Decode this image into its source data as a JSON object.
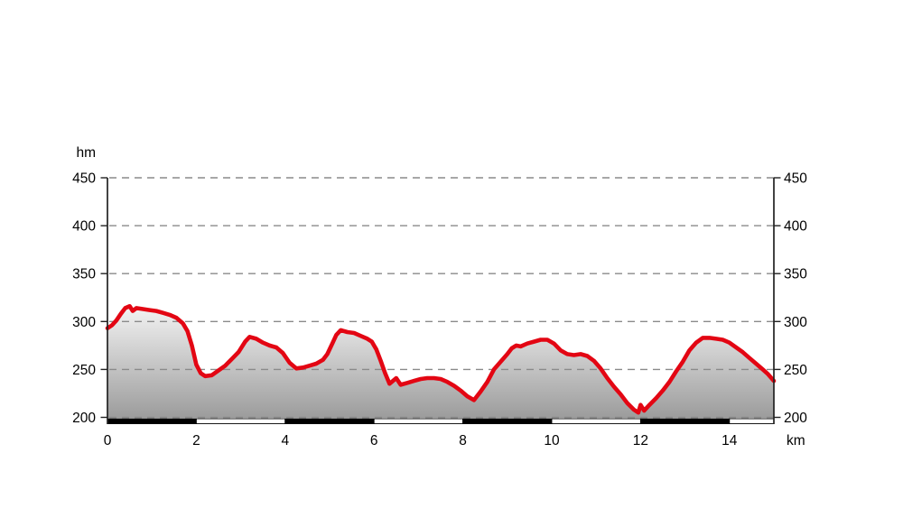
{
  "chart_data": {
    "type": "area",
    "title": "",
    "x_unit_label": "km",
    "y_unit_label": "hm",
    "x_ticks": [
      0,
      2,
      4,
      6,
      8,
      10,
      12,
      14
    ],
    "y_ticks": [
      200,
      250,
      300,
      350,
      400,
      450
    ],
    "xlim": [
      0,
      15
    ],
    "ylim": [
      200,
      450
    ],
    "grid": "horizontal-dashed",
    "legend": "none",
    "series_name": "elevation-profile",
    "profile": [
      [
        0.0,
        293
      ],
      [
        0.1,
        296
      ],
      [
        0.2,
        301
      ],
      [
        0.3,
        308
      ],
      [
        0.4,
        314
      ],
      [
        0.5,
        316
      ],
      [
        0.57,
        311
      ],
      [
        0.65,
        314
      ],
      [
        0.8,
        313
      ],
      [
        0.95,
        312
      ],
      [
        1.1,
        311
      ],
      [
        1.25,
        309
      ],
      [
        1.4,
        307
      ],
      [
        1.55,
        304
      ],
      [
        1.7,
        298
      ],
      [
        1.8,
        290
      ],
      [
        1.9,
        275
      ],
      [
        2.0,
        255
      ],
      [
        2.1,
        246
      ],
      [
        2.2,
        243
      ],
      [
        2.35,
        244
      ],
      [
        2.5,
        249
      ],
      [
        2.65,
        254
      ],
      [
        2.8,
        261
      ],
      [
        2.95,
        268
      ],
      [
        3.1,
        279
      ],
      [
        3.2,
        284
      ],
      [
        3.35,
        282
      ],
      [
        3.5,
        278
      ],
      [
        3.65,
        275
      ],
      [
        3.8,
        273
      ],
      [
        3.95,
        267
      ],
      [
        4.1,
        257
      ],
      [
        4.25,
        251
      ],
      [
        4.4,
        252
      ],
      [
        4.55,
        254
      ],
      [
        4.7,
        256
      ],
      [
        4.85,
        260
      ],
      [
        4.95,
        266
      ],
      [
        5.05,
        276
      ],
      [
        5.15,
        286
      ],
      [
        5.25,
        291
      ],
      [
        5.4,
        289
      ],
      [
        5.55,
        288
      ],
      [
        5.7,
        285
      ],
      [
        5.85,
        282
      ],
      [
        5.95,
        279
      ],
      [
        6.05,
        271
      ],
      [
        6.15,
        259
      ],
      [
        6.25,
        246
      ],
      [
        6.35,
        235
      ],
      [
        6.5,
        241
      ],
      [
        6.6,
        234
      ],
      [
        6.75,
        236
      ],
      [
        6.9,
        238
      ],
      [
        7.05,
        240
      ],
      [
        7.2,
        241
      ],
      [
        7.35,
        241
      ],
      [
        7.5,
        240
      ],
      [
        7.65,
        237
      ],
      [
        7.8,
        233
      ],
      [
        7.95,
        228
      ],
      [
        8.1,
        222
      ],
      [
        8.25,
        218
      ],
      [
        8.4,
        227
      ],
      [
        8.55,
        237
      ],
      [
        8.7,
        250
      ],
      [
        8.85,
        258
      ],
      [
        9.0,
        266
      ],
      [
        9.1,
        272
      ],
      [
        9.2,
        275
      ],
      [
        9.3,
        274
      ],
      [
        9.45,
        277
      ],
      [
        9.6,
        279
      ],
      [
        9.75,
        281
      ],
      [
        9.9,
        281
      ],
      [
        10.05,
        277
      ],
      [
        10.2,
        270
      ],
      [
        10.35,
        266
      ],
      [
        10.5,
        265
      ],
      [
        10.65,
        266
      ],
      [
        10.8,
        264
      ],
      [
        10.95,
        259
      ],
      [
        11.1,
        251
      ],
      [
        11.25,
        241
      ],
      [
        11.4,
        232
      ],
      [
        11.55,
        224
      ],
      [
        11.7,
        215
      ],
      [
        11.85,
        208
      ],
      [
        11.95,
        205
      ],
      [
        12.0,
        213
      ],
      [
        12.08,
        207
      ],
      [
        12.2,
        213
      ],
      [
        12.35,
        220
      ],
      [
        12.5,
        228
      ],
      [
        12.65,
        237
      ],
      [
        12.8,
        248
      ],
      [
        12.95,
        258
      ],
      [
        13.1,
        270
      ],
      [
        13.25,
        278
      ],
      [
        13.4,
        283
      ],
      [
        13.55,
        283
      ],
      [
        13.7,
        282
      ],
      [
        13.85,
        281
      ],
      [
        14.0,
        278
      ],
      [
        14.15,
        273
      ],
      [
        14.3,
        268
      ],
      [
        14.45,
        262
      ],
      [
        14.6,
        256
      ],
      [
        14.75,
        250
      ],
      [
        14.87,
        245
      ],
      [
        15.0,
        238
      ]
    ],
    "surface_bar": {
      "description": "alternating distance bands every 2 km along baseline",
      "segments": [
        {
          "from": 0,
          "to": 2,
          "fill": "black"
        },
        {
          "from": 2,
          "to": 4,
          "fill": "white"
        },
        {
          "from": 4,
          "to": 6,
          "fill": "black"
        },
        {
          "from": 6,
          "to": 8,
          "fill": "white"
        },
        {
          "from": 8,
          "to": 10,
          "fill": "black"
        },
        {
          "from": 10,
          "to": 12,
          "fill": "white"
        },
        {
          "from": 12,
          "to": 14,
          "fill": "black"
        },
        {
          "from": 14,
          "to": 15,
          "fill": "white"
        }
      ]
    },
    "colors": {
      "line": "#e30613",
      "grid": "#8a8a8a",
      "axis": "#222222",
      "fill_top": "#f4f4f4",
      "fill_bottom": "#9a9a9a",
      "bar_black": "#000000",
      "bar_white": "#ffffff",
      "background": "#ffffff"
    }
  }
}
